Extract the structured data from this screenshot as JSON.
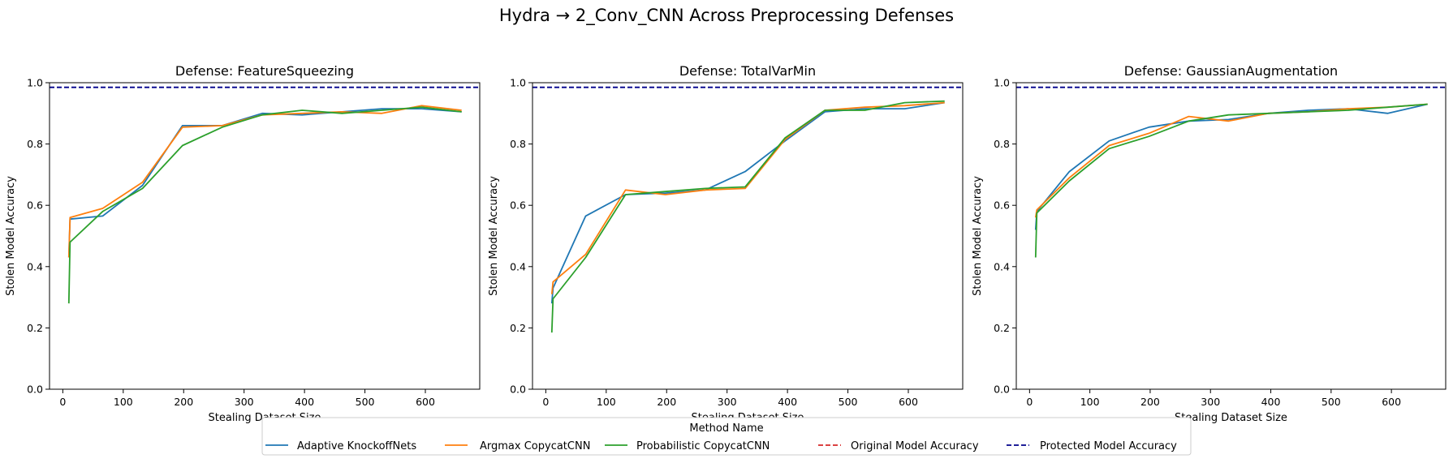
{
  "figure_title": "Hydra → 2_Conv_CNN Across Preprocessing Defenses",
  "legend": {
    "title": "Method Name",
    "placement": "bottom-center",
    "entries": [
      {
        "label": "Adaptive KnockoffNets",
        "color": "#1f77b4",
        "style": "solid"
      },
      {
        "label": "Argmax CopycatCNN",
        "color": "#ff7f0e",
        "style": "solid"
      },
      {
        "label": "Probabilistic CopycatCNN",
        "color": "#2ca02c",
        "style": "solid"
      },
      {
        "label": "Original Model Accuracy",
        "color": "#d62728",
        "style": "dashed"
      },
      {
        "label": "Protected Model Accuracy",
        "color": "#00008b",
        "style": "dashed"
      }
    ]
  },
  "chart_data": [
    {
      "type": "line",
      "title": "Defense: FeatureSqueezing",
      "xlabel": "Stealing Dataset Size",
      "ylabel": "Stolen Model Accuracy",
      "xlim": [
        -22,
        690
      ],
      "ylim": [
        0,
        1.0
      ],
      "xticks": [
        0,
        100,
        200,
        300,
        400,
        500,
        600
      ],
      "yticks": [
        0.0,
        0.2,
        0.4,
        0.6,
        0.8,
        1.0
      ],
      "grid": false,
      "hlines": [
        {
          "name": "Protected Model Accuracy",
          "y": 0.985,
          "color": "#00008b"
        }
      ],
      "series": [
        {
          "name": "Adaptive KnockoffNets",
          "color": "#1f77b4",
          "x": [
            10,
            12,
            66,
            132,
            198,
            264,
            330,
            396,
            462,
            528,
            594,
            660
          ],
          "y": [
            0.43,
            0.555,
            0.565,
            0.665,
            0.86,
            0.86,
            0.9,
            0.895,
            0.905,
            0.915,
            0.915,
            0.905
          ]
        },
        {
          "name": "Argmax CopycatCNN",
          "color": "#ff7f0e",
          "x": [
            10,
            12,
            66,
            132,
            198,
            264,
            330,
            396,
            462,
            528,
            594,
            660
          ],
          "y": [
            0.43,
            0.56,
            0.59,
            0.675,
            0.855,
            0.86,
            0.895,
            0.9,
            0.905,
            0.9,
            0.925,
            0.91
          ]
        },
        {
          "name": "Probabilistic CopycatCNN",
          "color": "#2ca02c",
          "x": [
            10,
            12,
            66,
            132,
            198,
            264,
            330,
            396,
            462,
            528,
            594,
            660
          ],
          "y": [
            0.28,
            0.48,
            0.58,
            0.655,
            0.795,
            0.855,
            0.895,
            0.91,
            0.9,
            0.91,
            0.92,
            0.905
          ]
        }
      ]
    },
    {
      "type": "line",
      "title": "Defense: TotalVarMin",
      "xlabel": "Stealing Dataset Size",
      "ylabel": "Stolen Model Accuracy",
      "xlim": [
        -22,
        690
      ],
      "ylim": [
        0,
        1.0
      ],
      "xticks": [
        0,
        100,
        200,
        300,
        400,
        500,
        600
      ],
      "yticks": [
        0.0,
        0.2,
        0.4,
        0.6,
        0.8,
        1.0
      ],
      "grid": false,
      "hlines": [
        {
          "name": "Protected Model Accuracy",
          "y": 0.985,
          "color": "#00008b"
        }
      ],
      "series": [
        {
          "name": "Adaptive KnockoffNets",
          "color": "#1f77b4",
          "x": [
            10,
            12,
            66,
            132,
            198,
            264,
            330,
            396,
            462,
            528,
            594,
            660
          ],
          "y": [
            0.28,
            0.33,
            0.565,
            0.635,
            0.64,
            0.65,
            0.71,
            0.81,
            0.905,
            0.915,
            0.915,
            0.935
          ]
        },
        {
          "name": "Argmax CopycatCNN",
          "color": "#ff7f0e",
          "x": [
            10,
            12,
            66,
            132,
            198,
            264,
            330,
            396,
            462,
            528,
            594,
            660
          ],
          "y": [
            0.31,
            0.35,
            0.44,
            0.65,
            0.635,
            0.65,
            0.655,
            0.815,
            0.91,
            0.92,
            0.925,
            0.935
          ]
        },
        {
          "name": "Probabilistic CopycatCNN",
          "color": "#2ca02c",
          "x": [
            10,
            12,
            66,
            132,
            198,
            264,
            330,
            396,
            462,
            528,
            594,
            660
          ],
          "y": [
            0.185,
            0.295,
            0.43,
            0.635,
            0.645,
            0.655,
            0.66,
            0.82,
            0.91,
            0.91,
            0.935,
            0.94
          ]
        }
      ]
    },
    {
      "type": "line",
      "title": "Defense: GaussianAugmentation",
      "xlabel": "Stealing Dataset Size",
      "ylabel": "Stolen Model Accuracy",
      "xlim": [
        -22,
        690
      ],
      "ylim": [
        0,
        1.0
      ],
      "xticks": [
        0,
        100,
        200,
        300,
        400,
        500,
        600
      ],
      "yticks": [
        0.0,
        0.2,
        0.4,
        0.6,
        0.8,
        1.0
      ],
      "grid": false,
      "hlines": [
        {
          "name": "Protected Model Accuracy",
          "y": 0.985,
          "color": "#00008b"
        }
      ],
      "series": [
        {
          "name": "Adaptive KnockoffNets",
          "color": "#1f77b4",
          "x": [
            10,
            12,
            66,
            132,
            198,
            264,
            330,
            396,
            462,
            528,
            594,
            660
          ],
          "y": [
            0.52,
            0.58,
            0.71,
            0.81,
            0.855,
            0.875,
            0.88,
            0.9,
            0.91,
            0.915,
            0.9,
            0.93
          ]
        },
        {
          "name": "Argmax CopycatCNN",
          "color": "#ff7f0e",
          "x": [
            10,
            12,
            66,
            132,
            198,
            264,
            330,
            396,
            462,
            528,
            594,
            660
          ],
          "y": [
            0.56,
            0.585,
            0.69,
            0.795,
            0.835,
            0.89,
            0.875,
            0.9,
            0.905,
            0.915,
            0.92,
            0.93
          ]
        },
        {
          "name": "Probabilistic CopycatCNN",
          "color": "#2ca02c",
          "x": [
            10,
            12,
            66,
            132,
            198,
            264,
            330,
            396,
            462,
            528,
            594,
            660
          ],
          "y": [
            0.43,
            0.575,
            0.68,
            0.785,
            0.825,
            0.875,
            0.895,
            0.9,
            0.905,
            0.91,
            0.92,
            0.93
          ]
        }
      ]
    }
  ]
}
